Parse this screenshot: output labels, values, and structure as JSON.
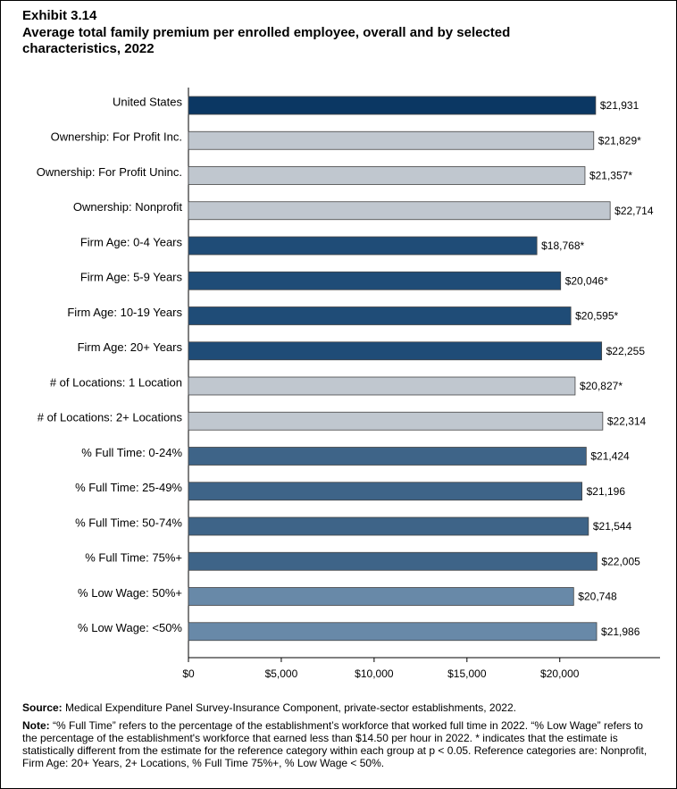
{
  "chart_data": {
    "type": "bar",
    "orientation": "horizontal",
    "title": "Exhibit 3.14",
    "subtitle": "Average total family premium per enrolled employee, overall and by selected characteristics, 2022",
    "categories": [
      "United States",
      "Ownership: For Profit Inc.",
      "Ownership: For Profit Uninc.",
      "Ownership: Nonprofit",
      "Firm Age: 0-4 Years",
      "Firm Age: 5-9 Years",
      "Firm Age: 10-19 Years",
      "Firm Age: 20+ Years",
      "# of Locations: 1 Location",
      "# of Locations: 2+ Locations",
      "% Full Time: 0-24%",
      "% Full Time: 25-49%",
      "% Full Time: 50-74%",
      "% Full Time: 75%+",
      "% Low Wage: 50%+",
      "% Low Wage: <50%"
    ],
    "values": [
      21931,
      21829,
      21357,
      22714,
      18768,
      20046,
      20595,
      22255,
      20827,
      22314,
      21424,
      21196,
      21544,
      22005,
      20748,
      21986
    ],
    "value_labels": [
      "$21,931",
      "$21,829*",
      "$21,357*",
      "$22,714",
      "$18,768*",
      "$20,046*",
      "$20,595*",
      "$22,255",
      "$20,827*",
      "$22,314",
      "$21,424",
      "$21,196",
      "$21,544",
      "$22,005",
      "$20,748",
      "$21,986"
    ],
    "colors": [
      "#0b3763",
      "#c0c7cf",
      "#c0c7cf",
      "#c0c7cf",
      "#1f4c77",
      "#1f4c77",
      "#1f4c77",
      "#1f4c77",
      "#c0c7cf",
      "#c0c7cf",
      "#3e6488",
      "#3e6488",
      "#3e6488",
      "#3e6488",
      "#6889a8",
      "#6889a8"
    ],
    "xlim": [
      0,
      25400
    ],
    "xticks": [
      {
        "value": 0,
        "label": "$0"
      },
      {
        "value": 5000,
        "label": "$5,000"
      },
      {
        "value": 10000,
        "label": "$10,000"
      },
      {
        "value": 15000,
        "label": "$15,000"
      },
      {
        "value": 20000,
        "label": "$20,000"
      }
    ],
    "grid": false
  },
  "source": {
    "label": "Source:",
    "text": "Medical Expenditure Panel Survey-Insurance Component, private-sector establishments, 2022."
  },
  "note": {
    "label": "Note:",
    "text": "“% Full Time” refers to the percentage of the establishment’s workforce that worked full time in 2022. “% Low Wage” refers to the percentage of the establishment's workforce that earned less than $14.50 per hour in 2022. * indicates that the estimate is statistically different from the estimate for the reference category within each group at p < 0.05.  Reference categories are: Nonprofit, Firm Age: 20+ Years, 2+ Locations, % Full Time 75%+, % Low Wage < 50%."
  }
}
